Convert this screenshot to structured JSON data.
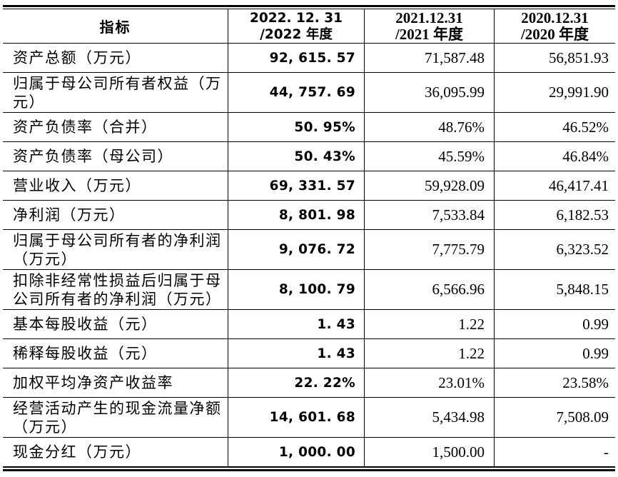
{
  "colors": {
    "background": "#ffffff",
    "text": "#000000",
    "border": "#000000"
  },
  "table": {
    "header": {
      "indicator": "指标",
      "periods": [
        {
          "line1": "2022. 12. 31",
          "line2": "/2022 年度"
        },
        {
          "line1": "2021.12.31",
          "line2": "/2021 年度"
        },
        {
          "line1": "2020.12.31",
          "line2": "/2020 年度"
        }
      ]
    },
    "rows": [
      {
        "label": "资产总额（万元）",
        "y2022": "92, 615. 57",
        "y2021": "71,587.48",
        "y2020": "56,851.93"
      },
      {
        "label": "归属于母公司所有者权益（万\n元）",
        "y2022": "44, 757. 69",
        "y2021": "36,095.99",
        "y2020": "29,991.90"
      },
      {
        "label": "资产负债率（合并）",
        "y2022": "50. 95%",
        "y2021": "48.76%",
        "y2020": "46.52%"
      },
      {
        "label": "资产负债率（母公司）",
        "y2022": "50. 43%",
        "y2021": "45.59%",
        "y2020": "46.84%"
      },
      {
        "label": "营业收入（万元）",
        "y2022": "69, 331. 57",
        "y2021": "59,928.09",
        "y2020": "46,417.41"
      },
      {
        "label": "净利润（万元）",
        "y2022": "8, 801. 98",
        "y2021": "7,533.84",
        "y2020": "6,182.53"
      },
      {
        "label": "归属于母公司所有者的净利润\n（万元）",
        "y2022": "9, 076. 72",
        "y2021": "7,775.79",
        "y2020": "6,323.52"
      },
      {
        "label": "扣除非经常性损益后归属于母\n公司所有者的净利润（万元）",
        "y2022": "8, 100. 79",
        "y2021": "6,566.96",
        "y2020": "5,848.15"
      },
      {
        "label": "基本每股收益（元）",
        "y2022": "1. 43",
        "y2021": "1.22",
        "y2020": "0.99"
      },
      {
        "label": "稀释每股收益（元）",
        "y2022": "1. 43",
        "y2021": "1.22",
        "y2020": "0.99"
      },
      {
        "label": "加权平均净资产收益率",
        "y2022": "22. 22%",
        "y2021": "23.01%",
        "y2020": "23.58%"
      },
      {
        "label": "经营活动产生的现金流量净额\n（万元）",
        "y2022": "14, 601. 68",
        "y2021": "5,434.98",
        "y2020": "7,508.09"
      },
      {
        "label": "现金分红（万元）",
        "y2022": "1, 000. 00",
        "y2021": "1,500.00",
        "y2020": "-"
      }
    ]
  }
}
